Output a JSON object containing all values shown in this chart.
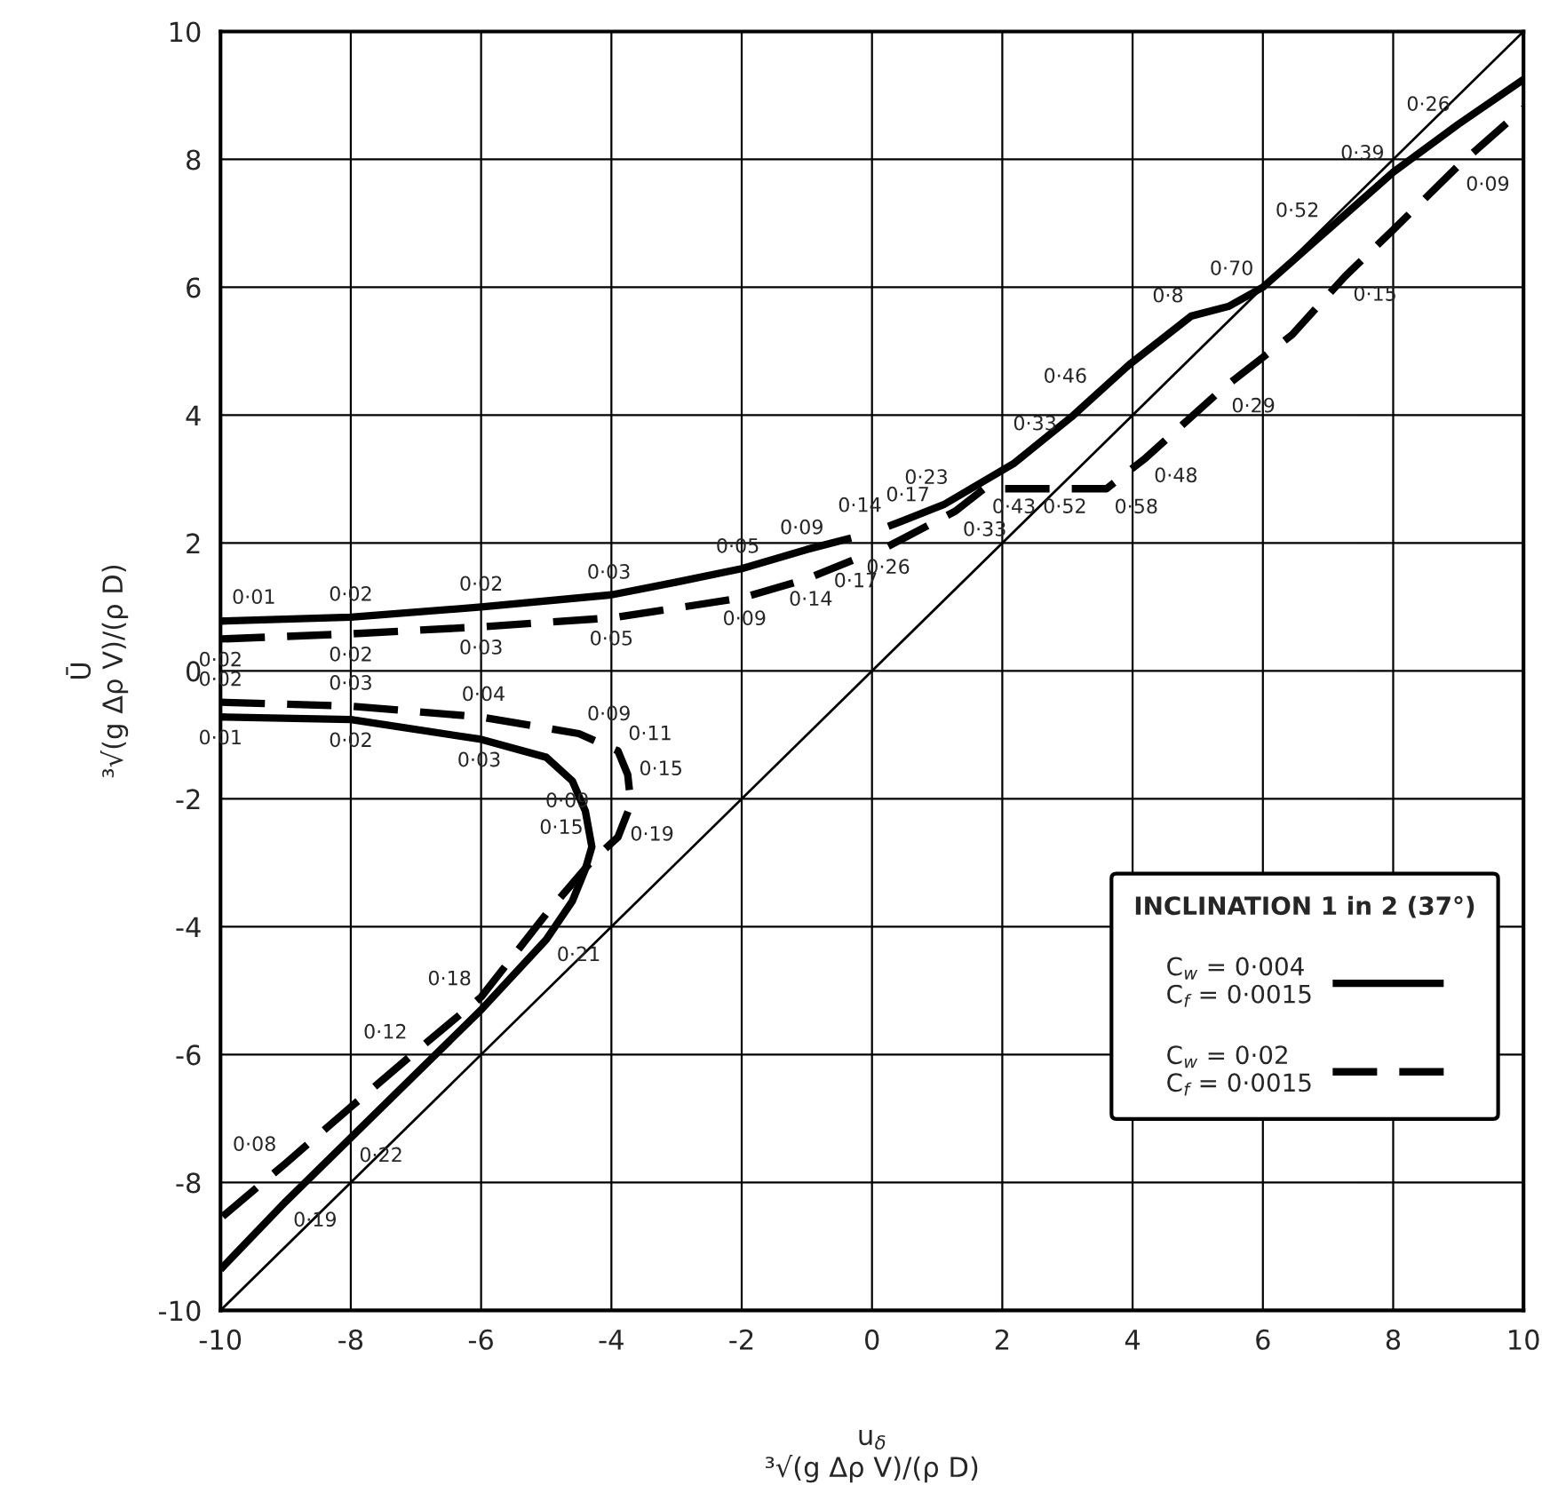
{
  "chart_data": {
    "type": "line",
    "xlabel": "u$_{δ}$\n³√(g Δρ V)/(ρ D)",
    "ylabel": "Ū\n³√(g Δρ V)/(ρ D)",
    "legend_title": "INCLINATION 1 in 2 (37°)",
    "xlim": [
      -10,
      10
    ],
    "ylim": [
      -10,
      10
    ],
    "xticks": [
      -10,
      -8,
      -6,
      -4,
      -2,
      0,
      2,
      4,
      6,
      8,
      10
    ],
    "yticks": [
      -10,
      -8,
      -6,
      -4,
      -2,
      0,
      2,
      4,
      6,
      8,
      10
    ],
    "grid": true,
    "legend": "lower right",
    "series": [
      {
        "name": "C$_{w}$ = 0·004\nC$_{f}$ = 0·0015",
        "color": "#000000",
        "line_style": "solid",
        "x": [
          -10,
          -8,
          -6,
          -4,
          -3,
          -2,
          -1,
          -0.32,
          null,
          0.25,
          1.1,
          2.17,
          3.06,
          3.96,
          4.9,
          5.47,
          6,
          7,
          8,
          9,
          10,
          null,
          -10,
          -8,
          -6,
          -5,
          -4.6,
          -4.4,
          -4.3,
          -4.4,
          -4.6,
          -5,
          -6,
          -7,
          -8,
          -9,
          -10
        ],
        "values": [
          0.78,
          0.84,
          1.0,
          1.19,
          1.39,
          1.6,
          1.9,
          2.08,
          null,
          2.26,
          2.6,
          3.24,
          3.97,
          4.8,
          5.55,
          5.7,
          6.0,
          6.9,
          7.8,
          8.55,
          9.25,
          null,
          -0.72,
          -0.76,
          -1.07,
          -1.35,
          -1.72,
          -2.19,
          -2.75,
          -3.1,
          -3.6,
          -4.2,
          -5.3,
          -6.3,
          -7.3,
          -8.3,
          -9.36
        ]
      },
      {
        "name": "C$_{w}$ = 0·02\nC$_{f}$ = 0·0015",
        "color": "#000000",
        "line_style": "dashed",
        "x": [
          -10,
          -8,
          -6,
          -4,
          -2,
          -1,
          -0.3,
          null,
          0.25,
          1.28,
          1.72,
          3.6,
          4.2,
          5.4,
          6.45,
          7.26,
          8,
          9,
          10,
          null,
          -10,
          -8,
          -6,
          -4.5,
          -3.9,
          -3.75,
          -3.7,
          -3.9,
          -4.3,
          -5,
          -6,
          -7,
          -8,
          -9,
          -10
        ],
        "values": [
          0.5,
          0.58,
          0.69,
          0.83,
          1.14,
          1.44,
          1.73,
          null,
          1.95,
          2.5,
          2.85,
          2.85,
          3.33,
          4.43,
          5.26,
          6.17,
          6.9,
          7.9,
          8.8,
          null,
          -0.49,
          -0.55,
          -0.72,
          -0.98,
          -1.25,
          -1.62,
          -2.08,
          -2.6,
          -2.97,
          -3.8,
          -5.1,
          -5.95,
          -6.82,
          -7.7,
          -8.56
        ]
      },
      {
        "color": "#000000",
        "line_style": "solid",
        "x": [
          -10,
          10
        ],
        "values": [
          -10,
          10
        ]
      }
    ],
    "annotations": [
      {
        "text": "0·01",
        "x": -9.5,
        "y": 0.795
      },
      {
        "text": "0·02",
        "x": -8,
        "y": 0.84
      },
      {
        "text": "0·02",
        "x": -6,
        "y": 1.0
      },
      {
        "text": "0·03",
        "x": -4,
        "y": 1.19
      },
      {
        "text": "0·05",
        "x": -2,
        "y": 1.6
      },
      {
        "text": "0·09",
        "x": -1,
        "y": 1.9
      },
      {
        "text": "0·14",
        "x": 0.25,
        "y": 2.26
      },
      {
        "text": "0·17",
        "x": 0.64,
        "y": 2.42
      },
      {
        "text": "0·23",
        "x": 1.29,
        "y": 2.71
      },
      {
        "text": "0·33",
        "x": 2.5,
        "y": 3.51
      },
      {
        "text": "0·46",
        "x": 3.43,
        "y": 4.3
      },
      {
        "text": "0·8",
        "x": 4.9,
        "y": 5.55
      },
      {
        "text": "0·70",
        "x": 6,
        "y": 6.0
      },
      {
        "text": "0·52",
        "x": 7,
        "y": 6.9
      },
      {
        "text": "0·39",
        "x": 8,
        "y": 7.8
      },
      {
        "text": "0·26",
        "x": 9,
        "y": 8.55
      },
      {
        "text": "0·02",
        "x": -10,
        "y": 0.5
      },
      {
        "text": "0·02",
        "x": -8,
        "y": 0.58
      },
      {
        "text": "0·03",
        "x": -6,
        "y": 0.69
      },
      {
        "text": "0·05",
        "x": -4,
        "y": 0.83
      },
      {
        "text": "0·09",
        "x": -2,
        "y": 1.14
      },
      {
        "text": "0·14",
        "x": -1,
        "y": 1.44
      },
      {
        "text": "0·17",
        "x": -0.3,
        "y": 1.73
      },
      {
        "text": "0·26",
        "x": 0.25,
        "y": 1.95
      },
      {
        "text": "0·33",
        "x": 1.28,
        "y": 2.5
      },
      {
        "text": "0·43",
        "x": 1.72,
        "y": 2.85
      },
      {
        "text": "0·52",
        "x": 2.5,
        "y": 2.85
      },
      {
        "text": "0·58",
        "x": 3.6,
        "y": 2.85
      },
      {
        "text": "0·48",
        "x": 4.2,
        "y": 3.33
      },
      {
        "text": "0·29",
        "x": 5.4,
        "y": 4.43
      },
      {
        "text": "0·15",
        "x": 7.26,
        "y": 6.17
      },
      {
        "text": "0·09",
        "x": 9,
        "y": 7.9
      },
      {
        "text": "0·01",
        "x": -10,
        "y": -0.72
      },
      {
        "text": "0·02",
        "x": -8,
        "y": -0.76
      },
      {
        "text": "0·03",
        "x": -6,
        "y": -1.07
      },
      {
        "text": "0·09",
        "x": -4.6,
        "y": -1.72
      },
      {
        "text": "0·15",
        "x": -4.3,
        "y": -2.75
      },
      {
        "text": "0·21",
        "x": -5,
        "y": -4.2
      },
      {
        "text": "0·22",
        "x": -8,
        "y": -7.3
      },
      {
        "text": "0·19",
        "x": -9,
        "y": -8.3
      },
      {
        "text": "0·02",
        "x": -10,
        "y": -0.49
      },
      {
        "text": "0·03",
        "x": -8,
        "y": -0.55
      },
      {
        "text": "0·04",
        "x": -6,
        "y": -0.72
      },
      {
        "text": "0·09",
        "x": -4.5,
        "y": -0.98
      },
      {
        "text": "0·11",
        "x": -3.9,
        "y": -1.25
      },
      {
        "text": "0·15",
        "x": -3.75,
        "y": -1.62
      },
      {
        "text": "0·19",
        "x": -3.9,
        "y": -2.6
      },
      {
        "text": "0·18",
        "x": -6,
        "y": -5.1
      },
      {
        "text": "0·12",
        "x": -7,
        "y": -5.95
      },
      {
        "text": "0·08",
        "x": -9,
        "y": -7.7
      }
    ]
  }
}
